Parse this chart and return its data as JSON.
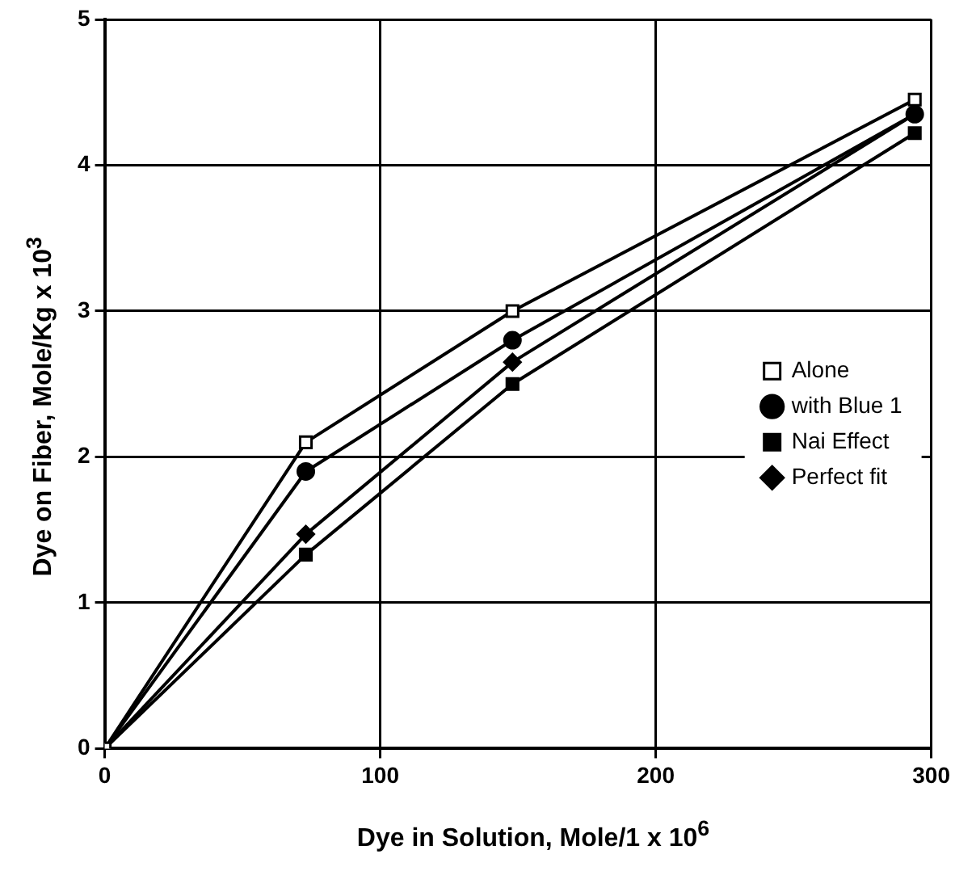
{
  "chart_data": {
    "type": "line",
    "xlabel": "Dye in Solution, Mole/1  x  10$^{6}$",
    "ylabel": "Dye on Fiber, Mole/Kg  x  10$^{3}$",
    "x": [
      0,
      73,
      148,
      294
    ],
    "series": [
      {
        "name": "Alone",
        "color": "#000000",
        "marker": "square",
        "values": [
          0,
          2.1,
          3.0,
          4.45
        ]
      },
      {
        "name": "with Blue 1",
        "color": "#000000",
        "marker": "circle",
        "values": [
          0,
          1.9,
          2.8,
          4.35
        ]
      },
      {
        "name": "Nai Effect",
        "color": "#000000",
        "marker": "square",
        "values": [
          0,
          1.33,
          2.5,
          4.22
        ]
      },
      {
        "name": "Perfect fit",
        "color": "#000000",
        "marker": "diamond",
        "values": [
          0,
          1.47,
          2.65,
          4.35
        ]
      }
    ],
    "xlim": [
      0,
      300
    ],
    "xticks": [
      0,
      100,
      200,
      300
    ],
    "ylim": [
      0,
      5
    ],
    "yticks": [
      0,
      1,
      2,
      3,
      4,
      5
    ],
    "grid": true,
    "legend": "right",
    "line_style": "solid"
  }
}
